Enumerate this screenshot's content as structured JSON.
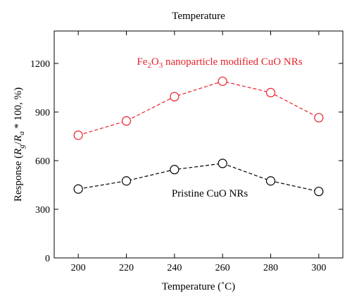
{
  "chart_data": {
    "type": "line",
    "title": "Temperature",
    "xlabel": "Temperature (˚C)",
    "ylabel_parts": [
      "Response (",
      "R",
      "g",
      "/",
      "R",
      "a",
      " * 100, %)"
    ],
    "x": [
      200,
      220,
      240,
      260,
      280,
      300
    ],
    "xlim": [
      190,
      310
    ],
    "ylim": [
      0,
      1400
    ],
    "xticks": [
      200,
      220,
      240,
      260,
      280,
      300
    ],
    "yticks": [
      0,
      300,
      600,
      900,
      1200
    ],
    "grid": false,
    "series": [
      {
        "name": "Fe2O3 nanoparticle modified CuO NRs",
        "label_parts": [
          "Fe",
          "2",
          "O",
          "3",
          " nanoparticle modified CuO NRs"
        ],
        "color": "#e8202a",
        "line_style": "dashed",
        "marker": "open-circle",
        "values": [
          757,
          845,
          995,
          1090,
          1020,
          865
        ]
      },
      {
        "name": "Pristine CuO NRs",
        "label_parts": [
          "Pristine CuO NRs"
        ],
        "color": "#000000",
        "line_style": "dashed",
        "marker": "open-circle",
        "values": [
          425,
          475,
          545,
          583,
          475,
          410
        ]
      }
    ]
  }
}
